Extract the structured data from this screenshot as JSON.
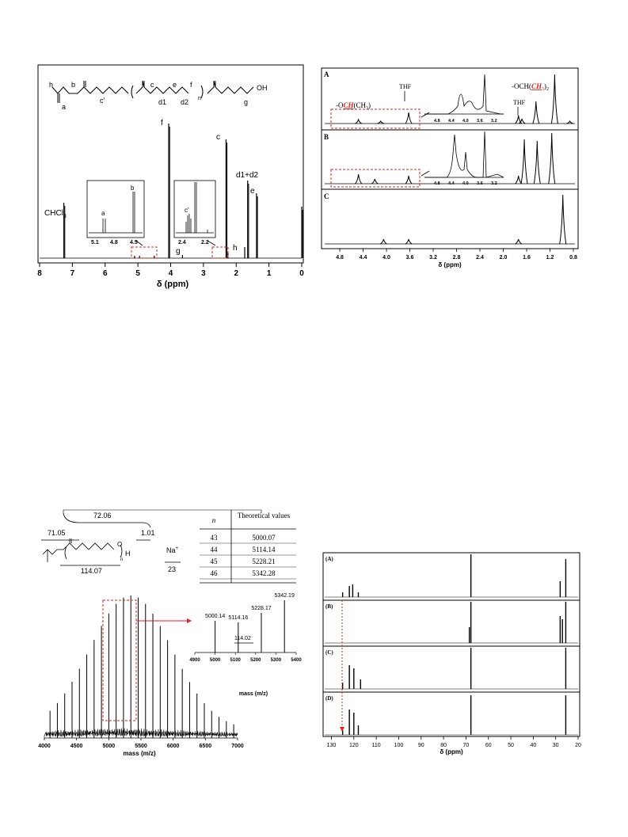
{
  "fig1": {
    "xaxis_title": "δ (ppm)",
    "ticks": [
      "8",
      "7",
      "6",
      "5",
      "4",
      "3",
      "2",
      "1",
      "0"
    ],
    "peak_labels": {
      "chcl3": "CHCl",
      "chcl3_sub": "3",
      "f": "f",
      "c": "c",
      "d": "d1+d2",
      "e": "e",
      "g": "g",
      "h": "h"
    },
    "structure_labels": {
      "h": "h",
      "b": "b",
      "a": "a",
      "cp": "c'",
      "c": "c",
      "e": "e",
      "f": "f",
      "d1": "d1",
      "d2": "d2",
      "n": "n",
      "g": "g",
      "oh": "OH"
    },
    "inset1": {
      "ticks": [
        "5.1",
        "4.8",
        "4.5"
      ],
      "labels": [
        "a",
        "b"
      ]
    },
    "inset2": {
      "ticks": [
        "2.4",
        "2.2"
      ],
      "label": "c'"
    }
  },
  "fig2": {
    "row_labels": [
      "A",
      "B",
      "C"
    ],
    "xaxis_title": "δ (ppm)",
    "ticks": [
      "4.8",
      "4.4",
      "4.0",
      "3.6",
      "3.2",
      "2.8",
      "2.4",
      "2.0",
      "1.6",
      "1.2",
      "0.8"
    ],
    "annot_och_ch3_pre": "-O",
    "annot_och_ch3_red": "CH",
    "annot_och_ch3_post": "(CH",
    "annot_och_ch3_sub": "3",
    "annot_och_ch3_end": ")",
    "annot_thf1": "THF",
    "annot_thf2": "THF",
    "annot_och2_pre": "-OCH(",
    "annot_och2_red": "CH",
    "annot_och2_sub": "3",
    "annot_och2_end": ")",
    "annot_och2_sub2": "2",
    "inset_ticks": [
      "4.8",
      "4.4",
      "4.0",
      "3.6",
      "3.2"
    ]
  },
  "fig3": {
    "xaxis_title": "mass (m/z)",
    "ticks": [
      "4000",
      "4500",
      "5000",
      "5500",
      "6000",
      "6500",
      "7000"
    ],
    "mass_labels": {
      "m7206": "72.06",
      "m7105": "71.05",
      "m101": "1.01",
      "m11407": "114.07",
      "na": "Na",
      "na_sup": "+",
      "na_mass": "23",
      "n": "n",
      "h": "H"
    },
    "table": {
      "col_n": "n",
      "col_theo": "Theoretical values",
      "rows": [
        [
          "43",
          "5000.07"
        ],
        [
          "44",
          "5114.14"
        ],
        [
          "45",
          "5228.21"
        ],
        [
          "46",
          "5342.28"
        ]
      ]
    },
    "inset": {
      "xaxis_title": "mass (m/z)",
      "ticks": [
        "4900",
        "5000",
        "5100",
        "5200",
        "5300",
        "5400"
      ],
      "peak_labels": [
        "5000.14",
        "5114.16",
        "5228.17",
        "5342.19"
      ],
      "diff_label": "114.02"
    }
  },
  "fig4": {
    "row_labels": [
      "(A)",
      "(B)",
      "(C)",
      "(D)"
    ],
    "xaxis_title": "δ  (ppm)",
    "ticks": [
      "130",
      "120",
      "110",
      "100",
      "90",
      "80",
      "70",
      "60",
      "50",
      "40",
      "30",
      "20"
    ]
  },
  "chart_data": [
    {
      "type": "line",
      "xlabel": "δ (ppm)",
      "xlim": [
        8,
        0
      ],
      "peaks": [
        {
          "x": 7.26,
          "label": "CHCl3"
        },
        {
          "x": 5.1,
          "label": "a"
        },
        {
          "x": 4.95,
          "label": "a"
        },
        {
          "x": 4.5,
          "label": "b"
        },
        {
          "x": 4.06,
          "label": "f"
        },
        {
          "x": 3.64,
          "label": "g"
        },
        {
          "x": 2.31,
          "label": "c"
        },
        {
          "x": 2.25,
          "label": "c'"
        },
        {
          "x": 1.74,
          "label": "h"
        },
        {
          "x": 1.65,
          "label": "d1+d2"
        },
        {
          "x": 1.38,
          "label": "e"
        },
        {
          "x": 0.0,
          "label": ""
        }
      ]
    },
    {
      "type": "line",
      "xlabel": "δ (ppm)",
      "xlim": [
        4.95,
        0.8
      ],
      "series": [
        {
          "name": "A",
          "peaks": [
            4.48,
            4.1,
            3.62,
            2.85,
            2.65,
            2.3,
            1.74,
            1.68,
            1.44,
            1.12,
            0.86
          ]
        },
        {
          "name": "B",
          "peaks": [
            4.48,
            4.2,
            3.62,
            1.74,
            1.64,
            1.42,
            1.17
          ]
        },
        {
          "name": "C",
          "peaks": [
            4.05,
            3.62,
            1.74,
            0.98
          ]
        }
      ]
    },
    {
      "type": "bar",
      "xlabel": "mass (m/z)",
      "xlim": [
        4000,
        7000
      ],
      "spacing": 114.07,
      "peak_labels": [
        5000.14,
        5114.16,
        5228.17,
        5342.19
      ],
      "diff": 114.02
    },
    {
      "type": "line",
      "xlabel": "δ  (ppm)",
      "xlim": [
        133,
        20
      ],
      "series": [
        {
          "name": "(A)",
          "peaks": [
            125,
            122,
            120.5,
            118,
            67.8,
            28,
            25.5
          ]
        },
        {
          "name": "(B)",
          "peaks": [
            67.8,
            68.5,
            28,
            27,
            25.5
          ]
        },
        {
          "name": "(C)",
          "peaks": [
            125,
            122,
            120,
            117,
            67.8,
            25.5
          ]
        },
        {
          "name": "(D)",
          "peaks": [
            125,
            122,
            120,
            118,
            67.8,
            25.5
          ]
        }
      ]
    }
  ]
}
